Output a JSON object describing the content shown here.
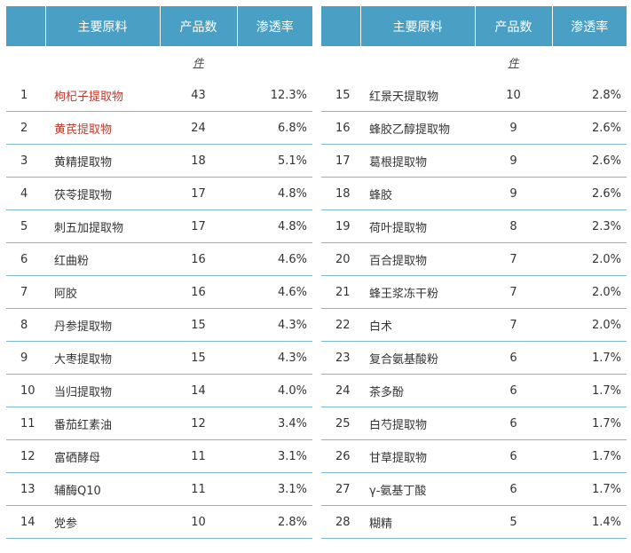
{
  "tables": [
    {
      "headers": {
        "name": "主要原料",
        "count": "产品数",
        "rate": "渗透率"
      },
      "unit": "件",
      "rows": [
        {
          "idx": "1",
          "name": "枸杞子提取物",
          "count": "43",
          "rate": "12.3%",
          "highlight": true
        },
        {
          "idx": "2",
          "name": "黄芪提取物",
          "count": "24",
          "rate": "6.8%",
          "highlight": true
        },
        {
          "idx": "3",
          "name": "黄精提取物",
          "count": "18",
          "rate": "5.1%"
        },
        {
          "idx": "4",
          "name": "茯苓提取物",
          "count": "17",
          "rate": "4.8%"
        },
        {
          "idx": "5",
          "name": "刺五加提取物",
          "count": "17",
          "rate": "4.8%"
        },
        {
          "idx": "6",
          "name": "红曲粉",
          "count": "16",
          "rate": "4.6%"
        },
        {
          "idx": "7",
          "name": "阿胶",
          "count": "16",
          "rate": "4.6%"
        },
        {
          "idx": "8",
          "name": "丹参提取物",
          "count": "15",
          "rate": "4.3%"
        },
        {
          "idx": "9",
          "name": "大枣提取物",
          "count": "15",
          "rate": "4.3%"
        },
        {
          "idx": "10",
          "name": "当归提取物",
          "count": "14",
          "rate": "4.0%"
        },
        {
          "idx": "11",
          "name": "番茄红素油",
          "count": "12",
          "rate": "3.4%"
        },
        {
          "idx": "12",
          "name": "富硒酵母",
          "count": "11",
          "rate": "3.1%"
        },
        {
          "idx": "13",
          "name": "辅酶Q10",
          "count": "11",
          "rate": "3.1%"
        },
        {
          "idx": "14",
          "name": "党参",
          "count": "10",
          "rate": "2.8%"
        }
      ]
    },
    {
      "headers": {
        "name": "主要原料",
        "count": "产品数",
        "rate": "渗透率"
      },
      "unit": "件",
      "rows": [
        {
          "idx": "15",
          "name": "红景天提取物",
          "count": "10",
          "rate": "2.8%"
        },
        {
          "idx": "16",
          "name": "蜂胶乙醇提取物",
          "count": "9",
          "rate": "2.6%"
        },
        {
          "idx": "17",
          "name": "葛根提取物",
          "count": "9",
          "rate": "2.6%"
        },
        {
          "idx": "18",
          "name": "蜂胶",
          "count": "9",
          "rate": "2.6%"
        },
        {
          "idx": "19",
          "name": "荷叶提取物",
          "count": "8",
          "rate": "2.3%"
        },
        {
          "idx": "20",
          "name": "百合提取物",
          "count": "7",
          "rate": "2.0%"
        },
        {
          "idx": "21",
          "name": "蜂王浆冻干粉",
          "count": "7",
          "rate": "2.0%"
        },
        {
          "idx": "22",
          "name": "白术",
          "count": "7",
          "rate": "2.0%"
        },
        {
          "idx": "23",
          "name": "复合氨基酸粉",
          "count": "6",
          "rate": "1.7%"
        },
        {
          "idx": "24",
          "name": "茶多酚",
          "count": "6",
          "rate": "1.7%"
        },
        {
          "idx": "25",
          "name": "白芍提取物",
          "count": "6",
          "rate": "1.7%"
        },
        {
          "idx": "26",
          "name": "甘草提取物",
          "count": "6",
          "rate": "1.7%"
        },
        {
          "idx": "27",
          "name": "γ-氨基丁酸",
          "count": "6",
          "rate": "1.7%"
        },
        {
          "idx": "28",
          "name": "糊精",
          "count": "5",
          "rate": "1.4%"
        }
      ]
    }
  ],
  "colors": {
    "header_bg": "#4aa0c4",
    "header_text": "#ffffff",
    "highlight_text": "#c0392b",
    "row_border": "#7fb8d2"
  }
}
